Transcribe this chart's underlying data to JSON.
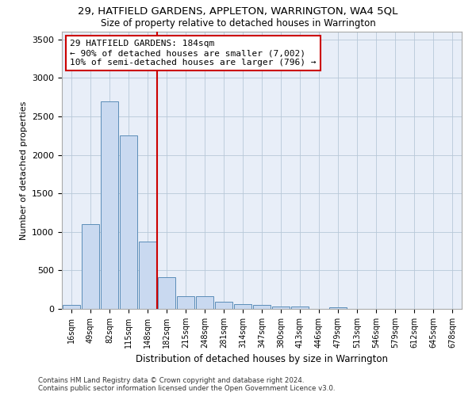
{
  "title": "29, HATFIELD GARDENS, APPLETON, WARRINGTON, WA4 5QL",
  "subtitle": "Size of property relative to detached houses in Warrington",
  "xlabel": "Distribution of detached houses by size in Warrington",
  "ylabel": "Number of detached properties",
  "bins": [
    "16sqm",
    "49sqm",
    "82sqm",
    "115sqm",
    "148sqm",
    "182sqm",
    "215sqm",
    "248sqm",
    "281sqm",
    "314sqm",
    "347sqm",
    "380sqm",
    "413sqm",
    "446sqm",
    "479sqm",
    "513sqm",
    "546sqm",
    "579sqm",
    "612sqm",
    "645sqm",
    "678sqm"
  ],
  "bar_heights": [
    50,
    1100,
    2700,
    2250,
    875,
    415,
    165,
    160,
    90,
    65,
    50,
    35,
    30,
    0,
    25,
    0,
    0,
    0,
    0,
    0,
    0
  ],
  "bar_color": "#c9d9f0",
  "bar_edge_color": "#5b8db8",
  "vline_color": "#cc0000",
  "annotation_title": "29 HATFIELD GARDENS: 184sqm",
  "annotation_line1": "← 90% of detached houses are smaller (7,002)",
  "annotation_line2": "10% of semi-detached houses are larger (796) →",
  "annotation_box_color": "#ffffff",
  "annotation_box_edge": "#cc0000",
  "footer_line1": "Contains HM Land Registry data © Crown copyright and database right 2024.",
  "footer_line2": "Contains public sector information licensed under the Open Government Licence v3.0.",
  "bg_color": "#e8eef8",
  "ylim": [
    0,
    3600
  ],
  "yticks": [
    0,
    500,
    1000,
    1500,
    2000,
    2500,
    3000,
    3500
  ]
}
